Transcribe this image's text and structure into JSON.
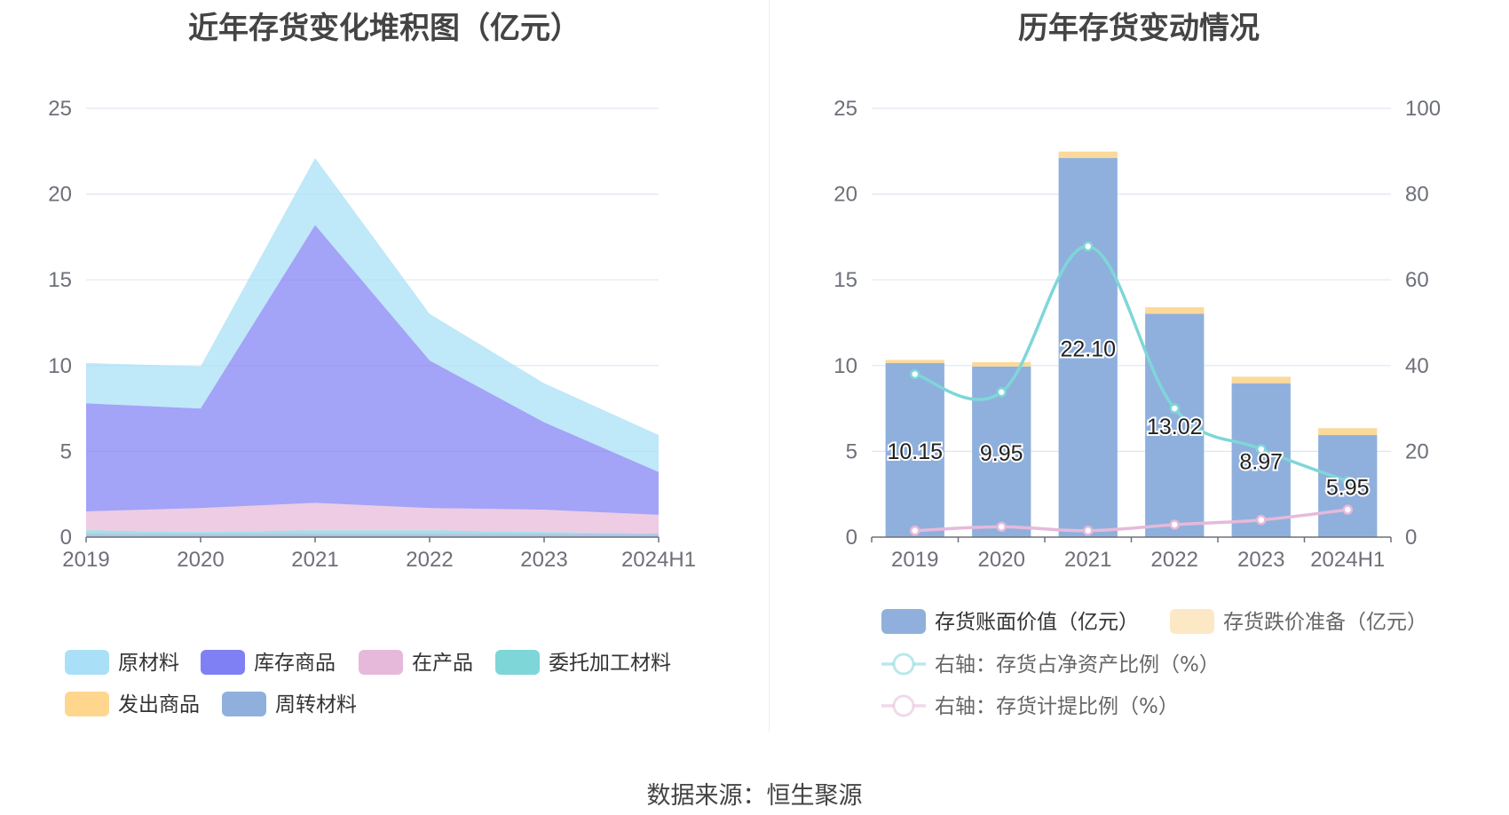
{
  "left_title": "近年存货变化堆积图（亿元）",
  "right_title": "历年存货变动情况",
  "source": "数据来源：恒生聚源",
  "chart_data": [
    {
      "type": "area",
      "stacked": true,
      "title": "近年存货变化堆积图（亿元）",
      "categories": [
        "2019",
        "2020",
        "2021",
        "2022",
        "2023",
        "2024H1"
      ],
      "ylim": [
        0,
        25
      ],
      "yticks": [
        0,
        5,
        10,
        15,
        20,
        25
      ],
      "grid": true,
      "legend_position": "bottom",
      "series": [
        {
          "name": "周转材料",
          "color": "#8fb0dc",
          "values": [
            0.2,
            0.2,
            0.2,
            0.2,
            0.2,
            0.2
          ]
        },
        {
          "name": "发出商品",
          "color": "#fed68e",
          "values": [
            0.0,
            0.0,
            0.0,
            0.0,
            0.0,
            0.0
          ]
        },
        {
          "name": "委托加工材料",
          "color": "#7fd6d8",
          "values": [
            0.2,
            0.1,
            0.2,
            0.2,
            0.1,
            0.0
          ]
        },
        {
          "name": "在产品",
          "color": "#e6b9da",
          "values": [
            1.1,
            1.4,
            1.6,
            1.3,
            1.3,
            1.1
          ]
        },
        {
          "name": "库存商品",
          "color": "#7f80f4",
          "values": [
            6.3,
            5.8,
            16.2,
            8.6,
            5.1,
            2.5
          ]
        },
        {
          "name": "原材料",
          "color": "#a9e0f7",
          "values": [
            2.35,
            2.45,
            3.9,
            2.72,
            2.27,
            2.15
          ]
        }
      ],
      "legend_order": [
        "原材料",
        "库存商品",
        "在产品",
        "委托加工材料",
        "发出商品",
        "周转材料"
      ]
    },
    {
      "type": "bar",
      "stacked": true,
      "title": "历年存货变动情况",
      "categories": [
        "2019",
        "2020",
        "2021",
        "2022",
        "2023",
        "2024H1"
      ],
      "ylim": [
        0,
        25
      ],
      "yticks": [
        0,
        5,
        10,
        15,
        20,
        25
      ],
      "y2lim": [
        0,
        100
      ],
      "y2ticks": [
        0,
        20,
        40,
        60,
        80,
        100
      ],
      "grid": true,
      "legend_position": "bottom",
      "bars": [
        {
          "name": "存货账面价值（亿元）",
          "color": "#8fb0dc",
          "values": [
            10.15,
            9.95,
            22.1,
            13.02,
            8.97,
            5.95
          ],
          "labels": [
            "10.15",
            "9.95",
            "22.10",
            "13.02",
            "8.97",
            "5.95"
          ]
        },
        {
          "name": "存货跌价准备（亿元）",
          "color": "#fbd99a",
          "legend_color": "#fde8c6",
          "values": [
            0.18,
            0.25,
            0.38,
            0.38,
            0.38,
            0.4
          ]
        }
      ],
      "lines": [
        {
          "name": "右轴：存货占净资产比例（%）",
          "color": "#7fd6d8",
          "axis": "right",
          "values": [
            38.0,
            33.8,
            67.8,
            30.0,
            20.5,
            13.0
          ]
        },
        {
          "name": "右轴：存货计提比例（%）",
          "color": "#e6b9da",
          "axis": "right",
          "values": [
            1.5,
            2.4,
            1.5,
            2.9,
            4.0,
            6.4
          ]
        }
      ]
    }
  ]
}
